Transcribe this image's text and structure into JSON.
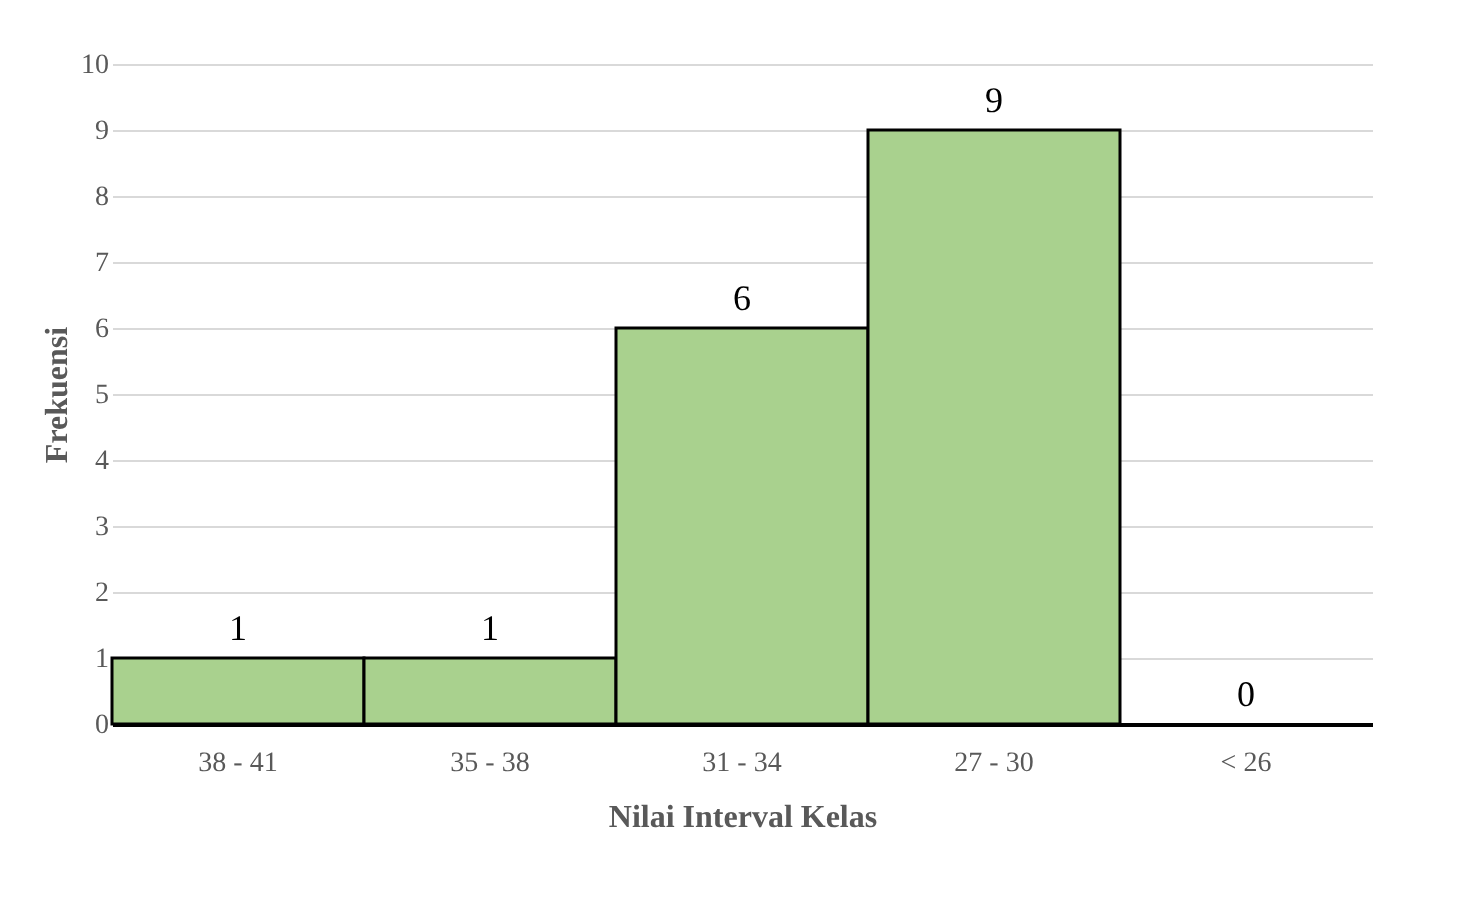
{
  "chart_data": {
    "type": "bar",
    "xlabel": "Nilai Interval Kelas",
    "ylabel": "Frekuensi",
    "categories": [
      "38 - 41",
      "35 - 38",
      "31 - 34",
      "27 - 30",
      "< 26"
    ],
    "values": [
      1,
      1,
      6,
      9,
      0
    ],
    "color": "#a9d18e",
    "ylim": [
      0,
      10
    ],
    "yticks": [
      0,
      1,
      2,
      3,
      4,
      5,
      6,
      7,
      8,
      9,
      10
    ],
    "grid": "y",
    "data_labels": true
  }
}
